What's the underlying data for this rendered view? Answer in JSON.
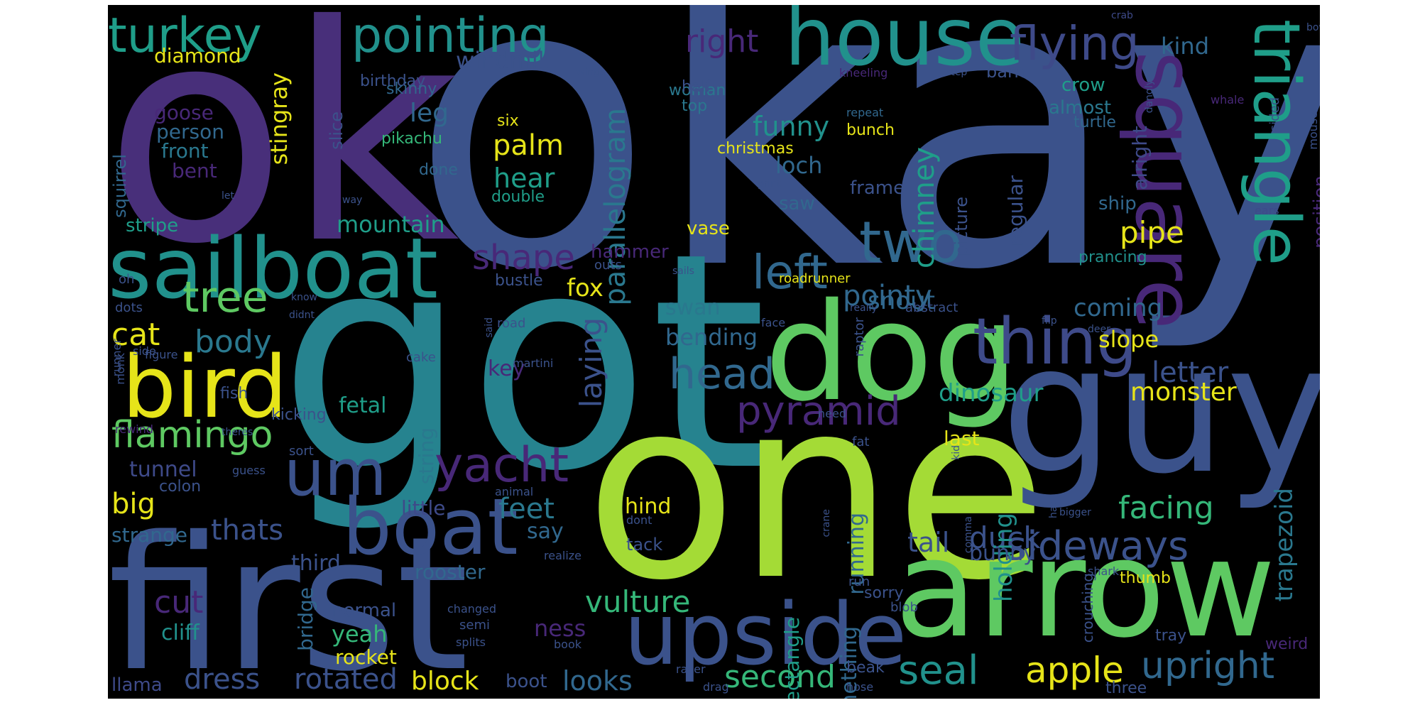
{
  "words": [
    {
      "t": "okay",
      "c": "#3b528b"
    },
    {
      "t": "ok",
      "c": "#482f7a"
    },
    {
      "t": "got",
      "c": "#26838f"
    },
    {
      "t": "one",
      "c": "#a4db36"
    },
    {
      "t": "guy",
      "c": "#3b528b"
    },
    {
      "t": "first",
      "c": "#3b528b"
    },
    {
      "t": "arrow",
      "c": "#5ec962"
    },
    {
      "t": "dog",
      "c": "#5ec962"
    },
    {
      "t": "upside",
      "c": "#3b528b"
    },
    {
      "t": "sailboat",
      "c": "#21918c"
    },
    {
      "t": "house",
      "c": "#21918c"
    },
    {
      "t": "square",
      "c": "#482878"
    },
    {
      "t": "triangle",
      "c": "#1f9e89"
    },
    {
      "t": "bird",
      "c": "#e6e419"
    },
    {
      "t": "boat",
      "c": "#3b528b"
    },
    {
      "t": "thing",
      "c": "#3e4a89"
    },
    {
      "t": "um",
      "c": "#3b528b"
    },
    {
      "t": "two",
      "c": "#31688e"
    },
    {
      "t": "pointing",
      "c": "#21918c"
    },
    {
      "t": "turkey",
      "c": "#1f9e89"
    },
    {
      "t": "flying",
      "c": "#3e4a89"
    },
    {
      "t": "left",
      "c": "#31688e"
    },
    {
      "t": "tree",
      "c": "#5ec962"
    },
    {
      "t": "yacht",
      "c": "#482878"
    },
    {
      "t": "pyramid",
      "c": "#482878"
    },
    {
      "t": "head",
      "c": "#31688e"
    },
    {
      "t": "flamingo",
      "c": "#5ec962"
    },
    {
      "t": "sideways",
      "c": "#3b528b"
    },
    {
      "t": "upright",
      "c": "#31688e"
    },
    {
      "t": "seal",
      "c": "#21918c"
    },
    {
      "t": "apple",
      "c": "#e6e419"
    },
    {
      "t": "dress",
      "c": "#3b528b"
    },
    {
      "t": "rotated",
      "c": "#3b528b"
    },
    {
      "t": "block",
      "c": "#e6e419"
    },
    {
      "t": "second",
      "c": "#35b779"
    },
    {
      "t": "looks",
      "c": "#31688e"
    },
    {
      "t": "right",
      "c": "#482878"
    },
    {
      "t": "shape",
      "c": "#482878"
    },
    {
      "t": "pointy",
      "c": "#31688e"
    },
    {
      "t": "body",
      "c": "#2a788e"
    },
    {
      "t": "cat",
      "c": "#e6e419"
    },
    {
      "t": "cut",
      "c": "#482878"
    },
    {
      "t": "big",
      "c": "#e6e419"
    },
    {
      "t": "thats",
      "c": "#3b528b"
    },
    {
      "t": "feet",
      "c": "#2a788e"
    },
    {
      "t": "vulture",
      "c": "#35b779"
    },
    {
      "t": "tail",
      "c": "#3b528b"
    },
    {
      "t": "duck",
      "c": "#3b528b"
    },
    {
      "t": "facing",
      "c": "#35b779"
    },
    {
      "t": "letter",
      "c": "#3b528b"
    },
    {
      "t": "monster",
      "c": "#e6e419"
    },
    {
      "t": "dinosaur",
      "c": "#1f9e89"
    },
    {
      "t": "pipe",
      "c": "#e6e419"
    },
    {
      "t": "funny",
      "c": "#21918c"
    },
    {
      "t": "palm",
      "c": "#e6e419"
    },
    {
      "t": "hear",
      "c": "#1f9e89"
    },
    {
      "t": "parallelogram",
      "c": "#2a788e"
    },
    {
      "t": "laying",
      "c": "#3b528b"
    },
    {
      "t": "chimney",
      "c": "#1f9e89"
    },
    {
      "t": "mountain",
      "c": "#1f9e89"
    },
    {
      "t": "fox",
      "c": "#e6e419"
    },
    {
      "t": "windmill",
      "c": "#3b528b"
    },
    {
      "t": "leg",
      "c": "#31688e"
    },
    {
      "t": "stingray",
      "c": "#e6e419"
    },
    {
      "t": "kind",
      "c": "#31688e"
    },
    {
      "t": "crow",
      "c": "#1f9e89"
    },
    {
      "t": "almost",
      "c": "#2a788e"
    },
    {
      "t": "barn",
      "c": "#3b528b"
    },
    {
      "t": "coming",
      "c": "#31688e"
    },
    {
      "t": "slope",
      "c": "#e6e419"
    },
    {
      "t": "regular",
      "c": "#3b528b"
    },
    {
      "t": "alright",
      "c": "#3e4a89"
    },
    {
      "t": "position",
      "c": "#482878"
    },
    {
      "t": "trapezoid",
      "c": "#2a788e"
    },
    {
      "t": "snout",
      "c": "#31688e"
    },
    {
      "t": "bending",
      "c": "#31688e"
    },
    {
      "t": "swan",
      "c": "#2a788e"
    },
    {
      "t": "saw",
      "c": "#31688e"
    },
    {
      "t": "loch",
      "c": "#31688e"
    },
    {
      "t": "frame",
      "c": "#3b528b"
    },
    {
      "t": "vase",
      "c": "#e6e419"
    },
    {
      "t": "hammer",
      "c": "#482878"
    },
    {
      "t": "holding",
      "c": "#21918c"
    },
    {
      "t": "running",
      "c": "#31688e"
    },
    {
      "t": "something",
      "c": "#31688e"
    },
    {
      "t": "rectangle",
      "c": "#1f9e89"
    },
    {
      "t": "last",
      "c": "#e6e419"
    },
    {
      "t": "fetal",
      "c": "#1f9e89"
    },
    {
      "t": "string",
      "c": "#2a788e"
    },
    {
      "t": "key",
      "c": "#482878"
    },
    {
      "t": "tunnel",
      "c": "#3e4a89"
    },
    {
      "t": "little",
      "c": "#3e4a89"
    },
    {
      "t": "strange",
      "c": "#31688e"
    },
    {
      "t": "say",
      "c": "#31688e"
    },
    {
      "t": "hind",
      "c": "#e6e419"
    },
    {
      "t": "tack",
      "c": "#3b528b"
    },
    {
      "t": "third",
      "c": "#3b528b"
    },
    {
      "t": "rooster",
      "c": "#31688e"
    },
    {
      "t": "cliff",
      "c": "#21918c"
    },
    {
      "t": "yeah",
      "c": "#35b779"
    },
    {
      "t": "normal",
      "c": "#3b528b"
    },
    {
      "t": "bridge",
      "c": "#31688e"
    },
    {
      "t": "rocket",
      "c": "#e6e419"
    },
    {
      "t": "ness",
      "c": "#482878"
    },
    {
      "t": "boot",
      "c": "#3b528b"
    },
    {
      "t": "llama",
      "c": "#3e4a89"
    },
    {
      "t": "stripe",
      "c": "#1f9e89"
    },
    {
      "t": "diamond",
      "c": "#e6e419"
    },
    {
      "t": "goose",
      "c": "#482878"
    },
    {
      "t": "person",
      "c": "#31688e"
    },
    {
      "t": "front",
      "c": "#2a788e"
    },
    {
      "t": "bent",
      "c": "#482878"
    },
    {
      "t": "squirrel",
      "c": "#31688e"
    },
    {
      "t": "slice",
      "c": "#3b528b"
    },
    {
      "t": "birthday",
      "c": "#3b528b"
    },
    {
      "t": "skinny",
      "c": "#31688e"
    },
    {
      "t": "pikachu",
      "c": "#35b779"
    },
    {
      "t": "done",
      "c": "#31688e"
    },
    {
      "t": "six",
      "c": "#e6e419"
    },
    {
      "t": "double",
      "c": "#1f9e89"
    },
    {
      "t": "woman",
      "c": "#2a788e"
    },
    {
      "t": "half",
      "c": "#3b528b"
    },
    {
      "t": "top",
      "c": "#2a788e"
    },
    {
      "t": "christmas",
      "c": "#e6e419"
    },
    {
      "t": "bunch",
      "c": "#e6e419"
    },
    {
      "t": "kneeling",
      "c": "#482878"
    },
    {
      "t": "repeat",
      "c": "#31688e"
    },
    {
      "t": "picture",
      "c": "#3b528b"
    },
    {
      "t": "sided",
      "c": "#3b528b"
    },
    {
      "t": "whale",
      "c": "#482878"
    },
    {
      "t": "turtle",
      "c": "#31688e"
    },
    {
      "t": "ship",
      "c": "#31688e"
    },
    {
      "t": "prancing",
      "c": "#21918c"
    },
    {
      "t": "ears",
      "c": "#3e4a89"
    },
    {
      "t": "crab",
      "c": "#3e4a89"
    },
    {
      "t": "dangly",
      "c": "#3b528b"
    },
    {
      "t": "bowl",
      "c": "#3b528b"
    },
    {
      "t": "mouse",
      "c": "#3b528b"
    },
    {
      "t": "wings",
      "c": "#3b528b"
    },
    {
      "t": "step",
      "c": "#3b528b"
    },
    {
      "t": "print",
      "c": "#3b528b"
    },
    {
      "t": "way",
      "c": "#3b528b"
    },
    {
      "t": "let",
      "c": "#3b528b"
    },
    {
      "t": "oh",
      "c": "#3b528b"
    },
    {
      "t": "dots",
      "c": "#3b528b"
    },
    {
      "t": "outs",
      "c": "#3b528b"
    },
    {
      "t": "sails",
      "c": "#3b528b"
    },
    {
      "t": "know",
      "c": "#3b528b"
    },
    {
      "t": "didnt",
      "c": "#3b528b"
    },
    {
      "t": "said",
      "c": "#3b528b"
    },
    {
      "t": "really",
      "c": "#3b528b"
    },
    {
      "t": "abstract",
      "c": "#3b528b"
    },
    {
      "t": "flip",
      "c": "#3b528b"
    },
    {
      "t": "deer",
      "c": "#3b528b"
    },
    {
      "t": "roadrunner",
      "c": "#e6e419"
    },
    {
      "t": "raptor",
      "c": "#3b528b"
    },
    {
      "t": "face",
      "c": "#3b528b"
    },
    {
      "t": "road",
      "c": "#3b528b"
    },
    {
      "t": "bustle",
      "c": "#3b528b"
    },
    {
      "t": "side",
      "c": "#3b528b"
    },
    {
      "t": "runner",
      "c": "#3b528b"
    },
    {
      "t": "monk",
      "c": "#3b528b"
    },
    {
      "t": "figure",
      "c": "#3b528b"
    },
    {
      "t": "cake",
      "c": "#3b528b"
    },
    {
      "t": "martini",
      "c": "#3b528b"
    },
    {
      "t": "kicking",
      "c": "#3b528b"
    },
    {
      "t": "fish",
      "c": "#3b528b"
    },
    {
      "t": "rewind",
      "c": "#482878"
    },
    {
      "t": "theres",
      "c": "#3b528b"
    },
    {
      "t": "sort",
      "c": "#3b528b"
    },
    {
      "t": "guess",
      "c": "#3b528b"
    },
    {
      "t": "colon",
      "c": "#3b528b"
    },
    {
      "t": "animal",
      "c": "#3b528b"
    },
    {
      "t": "dont",
      "c": "#3b528b"
    },
    {
      "t": "realize",
      "c": "#3b528b"
    },
    {
      "t": "need",
      "c": "#3b528b"
    },
    {
      "t": "kid",
      "c": "#3b528b"
    },
    {
      "t": "fat",
      "c": "#3b528b"
    },
    {
      "t": "comma",
      "c": "#3b528b"
    },
    {
      "t": "bigger",
      "c": "#3b528b"
    },
    {
      "t": "hat",
      "c": "#3b528b"
    },
    {
      "t": "crane",
      "c": "#3b528b"
    },
    {
      "t": "run",
      "c": "#3b528b"
    },
    {
      "t": "sorry",
      "c": "#3b528b"
    },
    {
      "t": "blob",
      "c": "#3b528b"
    },
    {
      "t": "thumb",
      "c": "#e6e419"
    },
    {
      "t": "shark",
      "c": "#3b528b"
    },
    {
      "t": "crouching",
      "c": "#3b528b"
    },
    {
      "t": "tray",
      "c": "#3b528b"
    },
    {
      "t": "weird",
      "c": "#482878"
    },
    {
      "t": "three",
      "c": "#3b528b"
    },
    {
      "t": "bunny",
      "c": "#3b528b"
    },
    {
      "t": "changed",
      "c": "#3b528b"
    },
    {
      "t": "semi",
      "c": "#3b528b"
    },
    {
      "t": "splits",
      "c": "#3b528b"
    },
    {
      "t": "book",
      "c": "#3b528b"
    },
    {
      "t": "racer",
      "c": "#3b528b"
    },
    {
      "t": "drag",
      "c": "#3b528b"
    },
    {
      "t": "hose",
      "c": "#3b528b"
    },
    {
      "t": "beak",
      "c": "#3b528b"
    }
  ]
}
